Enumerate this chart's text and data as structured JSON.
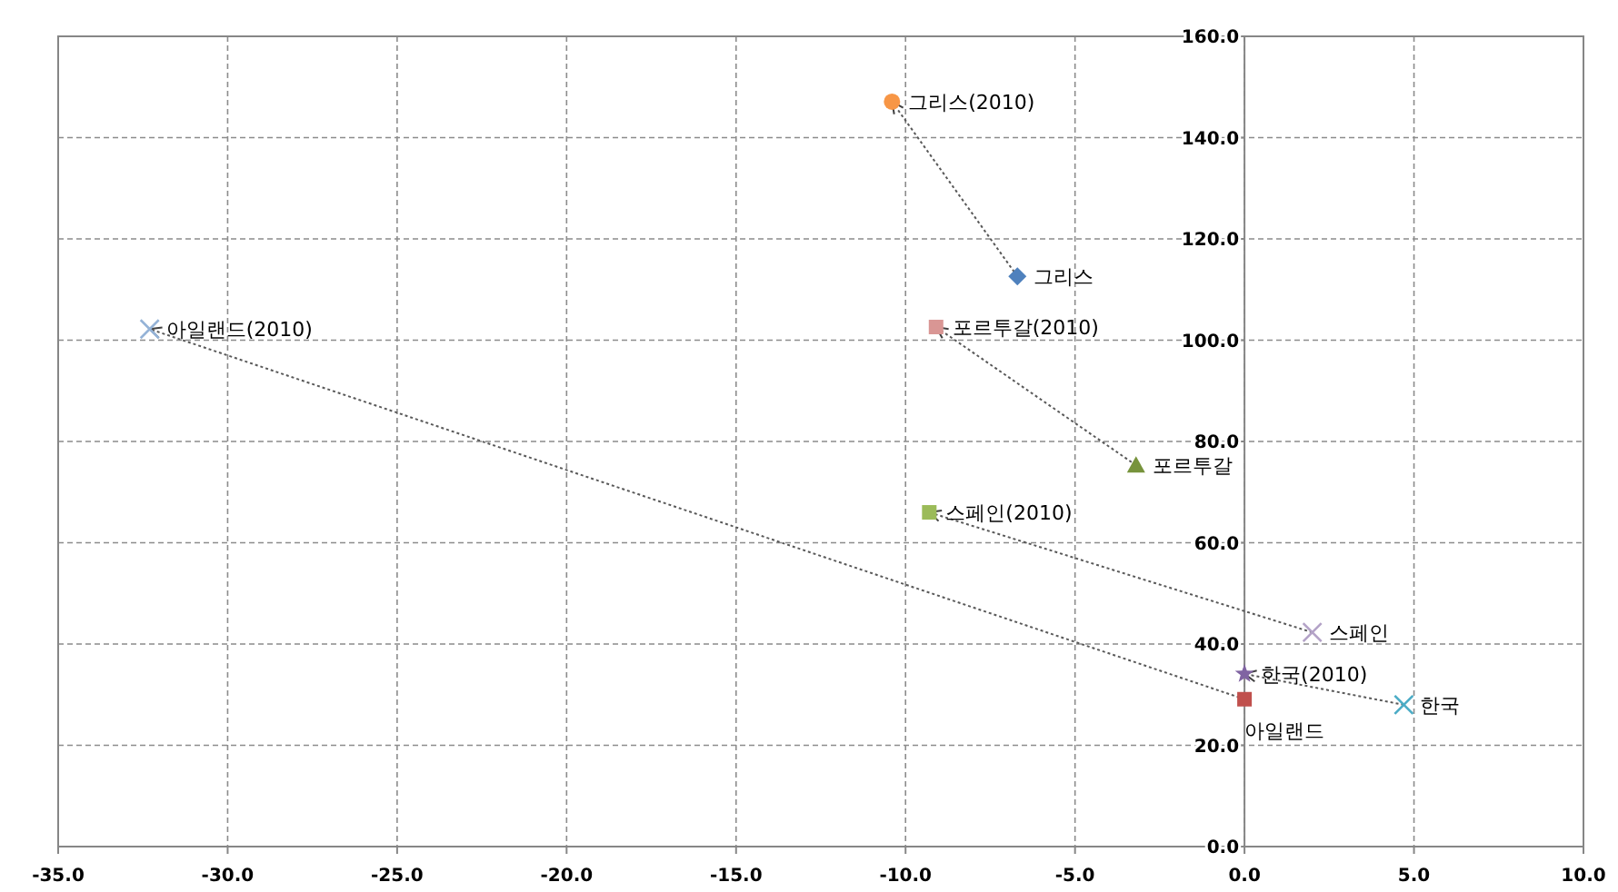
{
  "chart_data": {
    "type": "scatter",
    "xlim": [
      -35,
      10
    ],
    "ylim": [
      0,
      160
    ],
    "xticks": [
      {
        "value": -35,
        "label": "-35.0"
      },
      {
        "value": -30,
        "label": "-30.0"
      },
      {
        "value": -25,
        "label": "-25.0"
      },
      {
        "value": -20,
        "label": "-20.0"
      },
      {
        "value": -15,
        "label": "-15.0"
      },
      {
        "value": -10,
        "label": "-10.0"
      },
      {
        "value": -5,
        "label": "-5.0"
      },
      {
        "value": 0,
        "label": "0.0"
      },
      {
        "value": 5,
        "label": "5.0"
      },
      {
        "value": 10,
        "label": "10.0"
      }
    ],
    "yticks": [
      {
        "value": 0,
        "label": "0.0"
      },
      {
        "value": 20,
        "label": "20.0"
      },
      {
        "value": 40,
        "label": "40.0"
      },
      {
        "value": 60,
        "label": "60.0"
      },
      {
        "value": 80,
        "label": "80.0"
      },
      {
        "value": 100,
        "label": "100.0"
      },
      {
        "value": 120,
        "label": "120.0"
      },
      {
        "value": 140,
        "label": "140.0"
      },
      {
        "value": 160,
        "label": "160.0"
      }
    ],
    "grid": true,
    "legend": false,
    "series": [
      {
        "type": "line",
        "color": "#595959",
        "line_style": "dotted",
        "marker": "none",
        "x": [
          -6.7,
          -10.4
        ],
        "values": [
          112.6,
          147.1
        ]
      },
      {
        "type": "line",
        "color": "#595959",
        "line_style": "dotted",
        "marker": "none",
        "x": [
          -3.2,
          -9.1
        ],
        "values": [
          75.3,
          102.6
        ]
      },
      {
        "type": "line",
        "color": "#595959",
        "line_style": "dotted",
        "marker": "none",
        "x": [
          2.0,
          -9.3
        ],
        "values": [
          42.3,
          66.0
        ]
      },
      {
        "type": "line",
        "color": "#595959",
        "line_style": "dotted",
        "marker": "none",
        "x": [
          4.7,
          0.0
        ],
        "values": [
          28.0,
          34.1
        ]
      },
      {
        "type": "line",
        "color": "#595959",
        "line_style": "dotted",
        "marker": "none",
        "x": [
          0.0,
          -32.3
        ],
        "values": [
          29.1,
          102.2
        ]
      },
      {
        "name": "그리스",
        "color": "#4f81bd",
        "marker": "diamond",
        "x": [
          -6.7
        ],
        "values": [
          112.6
        ]
      },
      {
        "name": "그리스(2010)",
        "color": "#f79646",
        "marker": "circle",
        "x": [
          -10.4
        ],
        "values": [
          147.1
        ]
      },
      {
        "name": "포르투갈",
        "color": "#77933c",
        "marker": "triangle",
        "x": [
          -3.2
        ],
        "values": [
          75.3
        ]
      },
      {
        "name": "포르투갈(2010)",
        "color": "#d99694",
        "marker": "square",
        "x": [
          -9.1
        ],
        "values": [
          102.6
        ]
      },
      {
        "name": "스페인",
        "color": "#b3a2c7",
        "marker": "cross",
        "x": [
          2.0
        ],
        "values": [
          42.3
        ]
      },
      {
        "name": "스페인(2010)",
        "color": "#9bbb59",
        "marker": "square",
        "x": [
          -9.3
        ],
        "values": [
          66.0
        ]
      },
      {
        "name": "한국",
        "color": "#4bacc6",
        "marker": "cross",
        "x": [
          4.7
        ],
        "values": [
          28.0
        ]
      },
      {
        "name": "한국(2010)",
        "color": "#8064a2",
        "marker": "star",
        "x": [
          0.0
        ],
        "values": [
          34.1
        ]
      },
      {
        "name": "아일랜드",
        "color": "#c0504d",
        "marker": "square",
        "x": [
          0.0
        ],
        "values": [
          29.1
        ]
      },
      {
        "name": "아일랜드(2010)",
        "color": "#95b3d7",
        "marker": "cross",
        "x": [
          -32.3
        ],
        "values": [
          102.2
        ]
      }
    ]
  }
}
